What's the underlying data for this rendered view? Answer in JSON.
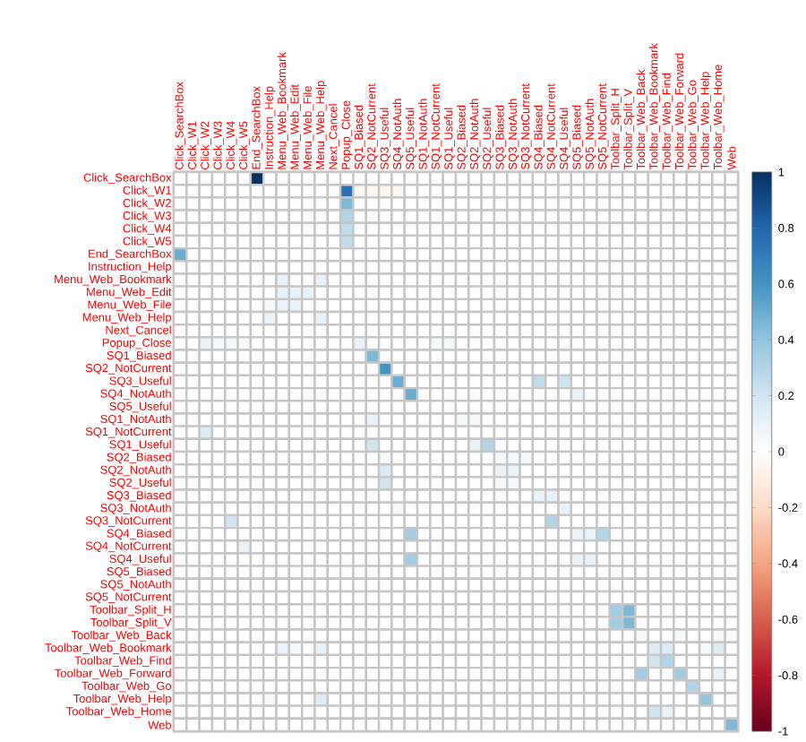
{
  "chart_data": {
    "type": "heatmap",
    "categories": [
      "Click_SearchBox",
      "Click_W1",
      "Click_W2",
      "Click_W3",
      "Click_W4",
      "Click_W5",
      "End_SearchBox",
      "Instruction_Help",
      "Menu_Web_Bookmark",
      "Menu_Web_Edit",
      "Menu_Web_File",
      "Menu_Web_Help",
      "Next_Cancel",
      "Popup_Close",
      "SQ1_Biased",
      "SQ2_NotCurrent",
      "SQ3_Useful",
      "SQ4_NotAuth",
      "SQ5_Useful",
      "SQ1_NotAuth",
      "SQ1_NotCurrent",
      "SQ1_Useful",
      "SQ2_Biased",
      "SQ2_NotAuth",
      "SQ2_Useful",
      "SQ3_Biased",
      "SQ3_NotAuth",
      "SQ3_NotCurrent",
      "SQ4_Biased",
      "SQ4_NotCurrent",
      "SQ4_Useful",
      "SQ5_Biased",
      "SQ5_NotAuth",
      "SQ5_NotCurrent",
      "Toolbar_Split_H",
      "Toolbar_Split_V",
      "Toolbar_Web_Back",
      "Toolbar_Web_Bookmark",
      "Toolbar_Web_Find",
      "Toolbar_Web_Forward",
      "Toolbar_Web_Go",
      "Toolbar_Web_Help",
      "Toolbar_Web_Home",
      "Web"
    ],
    "y_categories": [
      "Click_SearchBox",
      "Click_W1",
      "Click_W2",
      "Click_W3",
      "Click_W4",
      "Click_W5",
      "End_SearchBox",
      "Instruction_Help",
      "Menu_Web_Bookmark",
      "Menu_Web_Edit",
      "Menu_Web_File",
      "Menu_Web_Help",
      "Next_Cancel",
      "Popup_Close",
      "SQ1_Biased",
      "SQ2_NotCurrent",
      "SQ3_Useful",
      "SQ4_NotAuth",
      "SQ5_Useful",
      "SQ1_NotAuth",
      "SQ1_NotCurrent",
      "SQ1_Useful",
      "SQ2_Biased",
      "SQ2_NotAuth",
      "SQ2_Useful",
      "SQ3_Biased",
      "SQ3_NotAuth",
      "SQ3_NotCurrent",
      "SQ4_Biased",
      "SQ4_NotCurrent",
      "SQ4_Useful",
      "SQ5_Biased",
      "SQ5_NotAuth",
      "SQ5_NotCurrent",
      "Toolbar_Split_H",
      "Toolbar_Split_V",
      "Toolbar_Web_Back",
      "Toolbar_Web_Bookmark",
      "Toolbar_Web_Find",
      "Toolbar_Web_Forward",
      "Toolbar_Web_Go",
      "Toolbar_Web_Help",
      "Toolbar_Web_Home",
      "Web"
    ],
    "cells": [
      [
        0,
        0,
        0,
        0,
        0,
        0,
        1,
        0,
        0,
        0,
        0,
        0,
        0,
        0,
        0,
        0,
        0,
        0,
        0,
        0,
        0,
        0,
        0,
        0,
        0,
        0,
        0,
        0,
        0,
        0,
        0,
        0,
        0,
        0,
        0,
        0,
        0,
        0,
        0,
        0,
        0,
        0,
        0,
        0
      ],
      [
        0,
        0,
        0,
        0,
        0,
        0,
        0,
        0,
        0,
        0,
        0,
        0,
        0,
        0.75,
        -0.05,
        -0.05,
        -0.05,
        -0.05,
        0,
        0,
        0,
        0,
        0,
        0,
        0,
        0,
        0,
        0,
        0,
        0,
        0,
        0,
        0,
        0,
        0,
        0,
        0,
        0,
        0,
        0,
        0,
        0,
        0,
        0
      ],
      [
        0,
        0,
        0,
        0,
        0,
        0,
        0,
        0,
        0,
        0,
        0,
        0,
        0,
        0.45,
        0,
        0,
        0,
        0,
        0,
        0,
        0,
        0,
        0,
        0,
        0,
        0,
        0,
        0,
        0,
        0,
        0,
        0,
        0,
        0,
        0,
        0,
        0,
        0,
        0,
        0,
        0,
        0,
        0,
        0
      ],
      [
        0,
        0,
        0,
        0,
        0,
        0,
        0,
        0,
        0,
        0,
        0,
        0,
        0,
        0.3,
        0,
        0,
        0,
        0,
        0,
        0,
        0,
        0,
        0,
        0,
        0,
        0,
        0,
        0,
        0,
        0,
        0,
        0,
        0,
        0,
        0,
        0,
        0,
        0,
        0,
        0,
        0,
        0,
        0,
        0
      ],
      [
        0,
        0,
        0,
        0,
        0,
        0,
        0,
        0,
        0,
        0,
        0,
        0,
        0,
        0.25,
        0,
        0,
        0,
        0,
        0,
        0,
        0,
        0,
        0,
        0,
        0,
        0,
        0,
        0,
        0,
        0,
        0,
        0,
        0,
        0,
        0,
        0,
        0,
        0,
        0,
        0,
        0,
        0,
        0,
        0
      ],
      [
        0,
        0,
        0,
        0,
        0,
        0,
        0,
        0,
        0,
        0,
        0,
        0,
        0,
        0.25,
        0,
        0,
        0,
        0,
        0,
        0,
        0,
        0,
        0,
        0,
        0,
        0,
        0,
        0,
        0,
        0,
        0,
        0,
        0,
        0,
        0,
        0,
        0,
        0,
        0,
        0,
        0,
        0,
        0,
        0
      ],
      [
        0.5,
        0,
        0,
        0,
        0,
        0,
        0,
        0,
        0,
        0,
        0,
        0,
        0,
        0,
        0,
        0,
        0,
        0,
        0,
        0,
        0,
        0,
        0,
        0,
        0,
        0,
        0,
        0,
        0,
        0,
        0,
        0,
        0,
        0,
        0,
        0,
        0,
        0,
        0,
        0,
        0,
        0,
        0,
        0
      ],
      [
        0,
        0,
        0,
        0,
        0,
        0,
        0,
        0,
        0,
        0,
        0,
        0,
        0,
        0,
        0,
        0,
        0,
        0,
        0,
        0,
        0,
        0,
        0,
        0,
        0,
        0,
        0,
        0,
        0,
        0,
        0,
        0,
        0,
        0,
        0,
        0,
        0,
        0,
        0,
        0,
        0,
        0,
        0,
        0
      ],
      [
        0,
        0,
        0,
        0,
        0,
        0,
        0,
        0,
        0.1,
        0,
        0,
        0.1,
        0,
        0,
        0,
        0,
        0,
        0,
        0,
        0,
        0,
        0,
        0,
        0,
        0,
        0,
        0,
        0,
        0,
        0,
        0,
        0,
        0,
        0,
        0,
        0,
        0,
        0,
        0,
        0,
        0,
        0,
        0,
        0
      ],
      [
        0,
        0,
        0,
        0,
        0,
        0,
        0,
        0,
        0.1,
        0.1,
        0.1,
        0,
        0,
        0,
        0,
        0,
        0,
        0,
        0,
        0,
        0,
        0,
        0,
        0,
        0,
        0,
        0,
        0,
        0,
        0,
        0,
        0,
        0,
        0,
        0,
        0,
        0,
        0,
        0,
        0,
        0,
        0,
        0,
        0
      ],
      [
        0,
        0,
        0,
        0,
        0,
        0,
        0,
        0.05,
        0.1,
        0.1,
        0,
        0,
        0,
        0,
        0,
        0,
        0,
        0,
        0,
        0,
        0,
        0,
        0,
        0,
        0,
        0,
        0,
        0,
        0,
        0,
        0,
        0,
        0,
        0,
        0,
        0,
        0,
        0,
        0,
        0,
        0,
        0,
        0,
        0
      ],
      [
        0,
        0,
        0,
        0,
        0,
        0,
        0,
        0.1,
        0,
        0,
        0,
        0.1,
        0,
        0,
        0,
        0,
        0,
        0,
        0,
        0,
        0,
        0,
        0,
        0,
        0,
        0,
        0,
        0,
        0,
        0,
        0,
        0,
        0,
        0,
        0,
        0,
        0,
        0,
        0,
        0,
        0,
        0,
        0,
        0
      ],
      [
        0,
        0,
        0,
        0,
        0,
        0,
        0,
        0,
        0,
        0,
        0,
        0,
        0,
        0,
        0,
        0,
        0,
        0,
        0,
        0,
        0,
        0,
        0,
        0,
        0,
        0,
        0,
        0,
        0,
        0,
        0,
        0,
        0,
        0,
        0,
        0,
        0,
        0,
        0,
        0,
        0,
        0,
        0,
        0
      ],
      [
        0,
        0,
        0.1,
        0.05,
        0.05,
        0.05,
        0,
        0,
        0,
        0,
        0,
        0,
        0,
        0,
        0.1,
        0,
        0,
        0,
        0,
        0,
        0.05,
        0.05,
        0,
        0,
        0,
        0,
        0,
        0,
        0,
        0,
        0,
        0,
        0,
        0,
        0,
        0,
        0,
        0,
        0,
        0,
        0,
        0,
        0,
        0
      ],
      [
        0,
        0,
        0,
        0,
        0,
        0,
        0,
        0,
        0,
        0,
        0,
        0,
        0,
        0,
        0,
        0.45,
        0,
        0,
        0,
        0,
        0,
        0,
        0,
        0,
        0,
        0,
        0,
        0,
        0,
        0,
        0,
        0,
        0,
        0,
        0,
        0,
        0,
        0,
        0,
        0,
        0,
        0,
        0,
        0
      ],
      [
        0,
        0,
        0,
        0,
        0,
        0,
        0,
        0,
        0,
        0,
        0,
        0,
        0,
        0,
        0,
        0,
        0.6,
        0,
        0,
        0,
        0,
        0,
        0,
        0,
        0,
        0,
        0,
        0,
        0,
        0,
        0,
        0,
        0,
        0,
        0,
        0,
        0,
        0,
        0,
        0,
        0,
        0,
        0,
        0
      ],
      [
        0,
        0,
        0,
        0,
        0,
        0,
        0,
        0,
        0,
        0,
        0,
        0,
        0,
        0,
        0,
        0,
        0,
        0.5,
        0,
        0,
        0,
        0,
        0,
        0,
        0,
        0,
        0,
        0,
        0.25,
        0,
        0.2,
        0,
        0,
        0,
        0,
        0,
        0,
        0,
        0,
        0,
        0,
        0,
        0,
        0
      ],
      [
        0,
        0,
        0,
        0,
        0,
        0,
        0,
        0,
        0,
        0,
        0,
        0,
        0,
        0,
        0,
        0,
        0,
        0,
        0.5,
        0,
        0,
        0,
        0,
        0,
        0,
        0,
        0,
        0,
        0,
        0,
        0,
        0.1,
        0,
        0,
        0,
        0,
        0,
        0,
        0,
        0,
        0,
        0,
        0,
        0
      ],
      [
        0,
        0,
        0,
        0,
        0,
        0,
        0,
        0,
        0,
        0,
        0,
        0,
        0,
        0,
        0,
        0,
        0,
        0,
        0,
        0,
        0,
        0,
        0,
        0,
        0,
        0,
        0,
        0,
        0,
        0,
        0,
        0,
        0,
        0,
        0,
        0,
        0,
        0,
        0,
        0,
        0,
        0,
        0,
        0
      ],
      [
        0,
        0,
        0,
        0,
        0,
        0,
        0,
        0,
        0,
        0,
        0,
        0,
        0,
        0,
        0,
        0.1,
        0,
        0,
        0,
        0,
        0,
        0,
        0.05,
        0.05,
        0,
        0,
        0,
        0,
        0,
        0,
        0,
        0,
        0,
        0,
        0,
        0,
        0,
        0,
        0,
        0,
        0,
        0,
        0,
        0
      ],
      [
        0,
        0,
        0.15,
        0,
        0,
        0,
        0,
        0,
        0,
        0,
        0,
        0,
        0,
        0,
        0,
        0,
        0,
        0,
        0,
        0,
        0,
        0,
        0,
        0,
        0,
        0,
        0,
        0,
        0,
        0,
        0,
        0,
        0,
        0,
        0,
        0,
        0,
        0,
        0,
        0,
        0,
        0,
        0,
        0
      ],
      [
        0,
        0,
        0,
        0,
        0,
        0,
        0,
        0,
        0,
        0,
        0,
        0,
        0,
        0,
        0,
        0.2,
        0,
        0,
        0,
        0,
        0,
        0,
        0,
        0.1,
        0.3,
        0,
        0,
        0,
        0,
        0,
        0,
        0,
        0,
        0,
        0,
        0,
        0,
        0,
        0,
        0,
        0,
        0,
        0,
        0
      ],
      [
        0,
        0,
        0,
        0,
        0,
        0,
        0,
        0,
        0,
        0,
        0,
        0,
        0,
        0,
        0,
        0,
        0.05,
        0,
        0,
        0,
        0,
        0,
        0,
        0,
        0,
        0.05,
        0.05,
        0.05,
        0,
        0,
        0,
        0,
        0,
        0,
        0,
        0,
        0,
        0,
        0,
        0,
        0,
        0,
        0,
        0
      ],
      [
        0,
        0,
        0,
        0,
        0,
        0,
        0,
        0,
        0,
        0,
        0,
        0,
        0,
        0,
        0,
        0,
        0.15,
        0,
        0,
        0,
        0,
        0,
        0,
        0,
        0,
        0.1,
        0.1,
        0,
        0,
        0,
        0,
        0,
        0,
        0,
        0,
        0,
        0,
        0,
        0,
        0,
        0,
        0,
        0,
        0
      ],
      [
        0,
        0,
        0,
        0,
        0,
        0,
        0,
        0,
        0,
        0,
        0,
        0,
        0,
        0,
        0,
        0,
        0.2,
        0,
        0,
        0,
        0,
        0,
        0,
        0,
        0,
        0.05,
        0.05,
        0,
        0,
        0,
        0,
        0,
        0,
        0,
        0,
        0,
        0,
        0,
        0,
        0,
        0,
        0,
        0,
        0
      ],
      [
        0,
        0,
        0,
        0,
        0,
        0,
        0,
        0,
        0,
        0,
        0,
        0,
        0,
        0,
        0,
        0,
        0,
        0,
        0,
        0,
        0,
        0,
        0,
        0,
        0,
        0,
        0,
        0,
        0.1,
        0.1,
        0,
        0,
        0,
        0,
        0,
        0,
        0,
        0,
        0,
        0,
        0,
        0,
        0,
        0
      ],
      [
        0,
        0,
        0,
        0,
        0,
        0,
        0,
        0,
        0,
        0,
        0,
        0,
        0,
        0,
        0,
        0,
        0,
        0.05,
        0,
        0,
        0,
        0,
        0,
        0,
        0,
        0,
        0,
        0,
        0,
        0,
        0.1,
        0,
        0,
        0,
        0,
        0,
        0,
        0,
        0,
        0,
        0,
        0,
        0,
        0
      ],
      [
        0,
        0,
        0,
        0,
        0.2,
        0,
        0,
        0,
        0,
        0,
        0,
        0,
        0,
        0,
        0,
        0,
        0,
        0,
        0,
        0,
        0,
        0,
        0,
        0,
        0,
        0,
        0,
        0,
        0,
        0.3,
        0,
        0,
        0,
        0,
        0,
        0,
        0,
        0,
        0,
        0,
        0,
        0,
        0,
        0
      ],
      [
        0,
        0,
        0,
        0,
        0,
        0,
        0,
        0,
        0,
        0,
        0,
        0,
        0,
        0,
        0,
        0,
        0,
        0,
        0.35,
        0,
        0,
        0,
        0,
        0,
        0,
        0,
        0,
        0,
        0,
        0,
        0,
        0.1,
        0.1,
        0.3,
        0,
        0,
        0,
        0,
        0,
        0,
        0,
        0,
        0,
        0
      ],
      [
        0,
        0,
        0,
        0,
        0,
        0.1,
        0,
        0,
        0,
        0,
        0,
        0,
        0,
        0,
        0,
        0,
        0,
        0,
        0,
        0,
        0,
        0,
        0,
        0,
        0,
        0,
        0,
        0,
        0,
        0,
        0,
        0,
        0,
        0,
        0,
        0,
        0,
        0,
        0,
        0,
        0,
        0,
        0,
        0
      ],
      [
        0,
        0,
        0,
        0,
        0,
        0,
        0,
        0,
        0,
        0,
        0,
        0,
        0,
        0,
        0,
        0,
        0,
        0,
        0.35,
        0,
        0,
        0,
        0,
        0,
        0,
        0,
        0,
        0,
        0,
        0,
        0,
        0.1,
        0.1,
        0,
        0,
        0,
        0,
        0,
        0,
        0,
        0,
        0,
        0,
        0
      ],
      [
        0,
        0,
        0,
        0,
        0,
        0,
        0,
        0,
        0,
        0,
        0,
        0,
        0,
        0,
        0,
        0,
        0,
        0,
        0,
        0,
        0,
        0,
        0,
        0,
        0,
        0,
        0,
        0,
        0,
        0,
        0,
        0,
        0,
        0,
        0,
        0,
        0,
        0,
        0,
        0,
        0,
        0,
        0,
        0
      ],
      [
        0,
        0,
        0,
        0,
        0,
        0,
        0,
        0,
        0,
        0,
        0,
        0,
        0,
        0,
        0,
        0,
        0,
        0,
        0,
        0,
        0,
        0,
        0,
        0,
        0,
        0,
        0,
        0,
        0,
        0,
        0,
        0,
        0,
        0,
        0,
        0,
        0,
        0,
        0,
        0,
        0,
        0,
        0,
        0
      ],
      [
        0,
        0,
        0,
        0,
        0,
        0,
        0,
        0,
        0,
        0,
        0,
        0,
        0,
        0,
        0,
        0,
        0,
        0,
        0,
        0,
        0,
        0,
        0,
        0,
        0,
        0,
        0,
        0,
        0,
        0,
        0,
        0,
        0,
        0,
        0,
        0,
        0,
        0,
        0,
        0,
        0,
        0,
        0,
        0
      ],
      [
        0,
        0,
        0,
        0,
        0,
        0,
        0,
        0,
        0,
        0,
        0,
        0,
        0,
        0,
        0,
        0,
        0,
        0,
        0,
        0,
        0,
        0,
        0,
        0,
        0,
        0,
        0,
        0,
        0,
        0,
        0,
        0,
        0,
        0,
        0.35,
        0.45,
        0,
        0,
        0,
        0,
        0,
        0,
        0,
        0
      ],
      [
        0,
        0,
        0,
        0,
        0,
        0,
        0,
        0,
        0,
        0,
        0,
        0,
        0,
        0,
        0,
        0,
        0,
        0,
        0,
        0,
        0,
        0,
        0,
        0,
        0,
        0,
        0,
        0,
        0,
        0,
        0,
        0,
        0,
        0,
        0.35,
        0.45,
        0,
        0,
        0,
        0,
        0,
        0,
        0,
        0
      ],
      [
        0,
        0,
        0,
        0,
        0,
        0,
        0,
        0,
        0,
        0,
        0,
        0,
        0,
        0,
        0,
        0,
        0,
        0,
        0,
        0,
        0,
        0,
        0,
        0,
        0,
        0,
        0,
        0,
        0,
        0,
        0,
        0,
        0,
        0,
        0,
        0,
        0.05,
        0,
        0,
        0.05,
        0,
        0,
        0.05,
        0
      ],
      [
        0,
        0,
        0,
        0,
        0,
        0,
        0,
        0,
        0.1,
        0.05,
        0,
        0.1,
        0,
        0,
        0,
        0,
        0,
        0,
        0,
        0,
        0,
        0,
        0,
        0,
        0,
        0,
        0,
        0,
        0,
        0,
        0,
        0,
        0,
        0,
        0,
        0,
        0,
        0.15,
        0.15,
        0,
        0,
        0.05,
        0.15,
        0
      ],
      [
        0,
        0,
        0,
        0,
        0,
        0,
        0,
        0,
        0,
        0,
        0,
        0,
        0,
        0,
        0,
        0,
        0,
        0,
        0,
        0,
        0,
        0,
        0,
        0,
        0,
        0,
        0,
        0,
        0,
        0,
        0,
        0,
        0,
        0,
        0,
        0,
        0,
        0.2,
        0.3,
        0,
        0,
        0,
        0,
        0
      ],
      [
        0,
        0,
        0,
        0,
        0,
        0,
        0,
        0,
        0,
        0,
        0,
        0,
        0,
        0,
        0,
        0,
        0,
        0,
        0,
        0,
        0,
        0,
        0,
        0,
        0,
        0,
        0,
        0,
        0,
        0,
        0,
        0,
        0,
        0,
        0,
        0,
        0.35,
        0,
        0,
        0.35,
        0,
        0,
        0.1,
        0
      ],
      [
        0,
        0,
        0,
        0,
        0,
        0,
        0,
        0,
        0,
        0,
        0,
        0,
        0,
        0,
        0,
        0,
        0,
        0,
        0,
        0,
        0,
        0,
        0,
        0,
        0,
        0,
        0,
        0,
        0,
        0,
        0,
        0,
        0,
        0,
        0,
        0,
        0,
        0,
        0,
        0,
        0.3,
        0,
        0,
        0
      ],
      [
        0,
        0,
        0,
        0,
        0,
        0,
        0,
        0.05,
        0,
        0,
        0,
        0.15,
        0,
        0,
        0,
        0,
        0,
        0,
        0,
        0,
        0,
        0,
        0,
        0,
        0,
        0,
        0,
        0,
        0,
        0,
        0,
        0,
        0,
        0,
        0,
        0,
        0,
        0,
        0,
        0,
        0,
        0.4,
        0,
        0
      ],
      [
        0,
        0,
        0,
        0,
        0,
        0,
        0,
        0,
        0,
        0,
        0,
        0,
        0,
        0,
        0,
        0,
        0,
        0,
        0,
        0,
        0,
        0,
        0,
        0,
        0,
        0,
        0,
        0,
        0,
        0,
        0,
        0,
        0,
        0,
        0,
        0,
        0,
        0.2,
        0.1,
        0,
        0,
        0,
        0,
        0
      ],
      [
        0,
        0,
        0,
        0,
        0,
        0,
        0,
        0,
        0,
        0,
        0,
        0,
        0,
        0,
        0,
        0,
        0,
        0,
        0,
        0,
        0,
        0,
        0,
        0,
        0,
        0,
        0,
        0,
        0,
        0,
        0,
        0,
        0,
        0,
        0,
        0,
        0,
        0,
        0,
        0,
        0,
        0,
        0,
        0.45
      ]
    ],
    "clim": [
      -1,
      1
    ],
    "cticks": [
      -1,
      -0.8,
      -0.6,
      -0.4,
      -0.2,
      0,
      0.2,
      0.4,
      0.6,
      0.8,
      1
    ]
  }
}
